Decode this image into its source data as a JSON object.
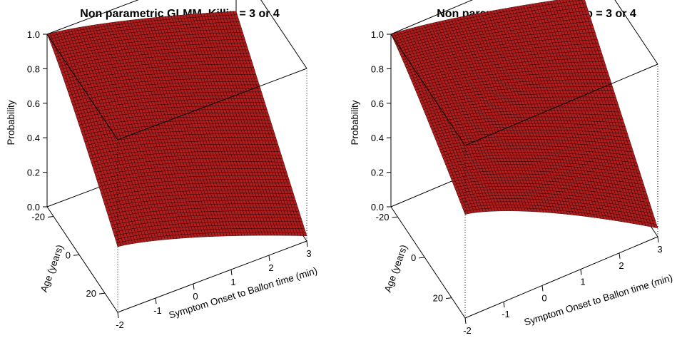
{
  "chart_data": [
    {
      "type": "surface3d",
      "title": "Non parametric GLMM, Killip = 3 or 4",
      "xlabel": "Symptom Onset to Ballon time (min)",
      "ylabel": "Age (years)",
      "zlabel": "Probability",
      "xlim": [
        -2,
        3
      ],
      "ylim": [
        -25,
        30
      ],
      "zlim": [
        0,
        1
      ],
      "x_ticks": [
        "-2",
        "-1",
        "0",
        "1",
        "2",
        "3"
      ],
      "y_ticks": [
        "-20",
        "0",
        "20"
      ],
      "z_ticks": [
        "0.0",
        "0.2",
        "0.4",
        "0.6",
        "0.8",
        "1.0"
      ],
      "surface_color": "#b11d1d",
      "mesh_color": "#1a0000",
      "corner_probabilities": {
        "x_min_age_min": 1.0,
        "x_min_age_max": 0.38,
        "x_max_age_min": 0.72,
        "x_max_age_max": 0.03
      }
    },
    {
      "type": "surface3d",
      "title": "Non parametric GLMM, Killip = 3 or 4",
      "xlabel": "Symptom Onset to Ballon time (min)",
      "ylabel": "Age (years)",
      "zlabel": "Probability",
      "xlim": [
        -2,
        3
      ],
      "ylim": [
        -25,
        30
      ],
      "zlim": [
        0,
        1
      ],
      "x_ticks": [
        "-2",
        "-1",
        "0",
        "1",
        "2",
        "3"
      ],
      "y_ticks": [
        "-20",
        "0",
        "20"
      ],
      "z_ticks": [
        "0.0",
        "0.2",
        "0.4",
        "0.6",
        "0.8",
        "1.0"
      ],
      "surface_color": "#b11d1d",
      "mesh_color": "#1a0000",
      "corner_probabilities": {
        "x_min_age_min": 1.0,
        "x_min_age_max": 0.6,
        "x_max_age_min": 0.75,
        "x_max_age_max": 0.05
      }
    }
  ]
}
